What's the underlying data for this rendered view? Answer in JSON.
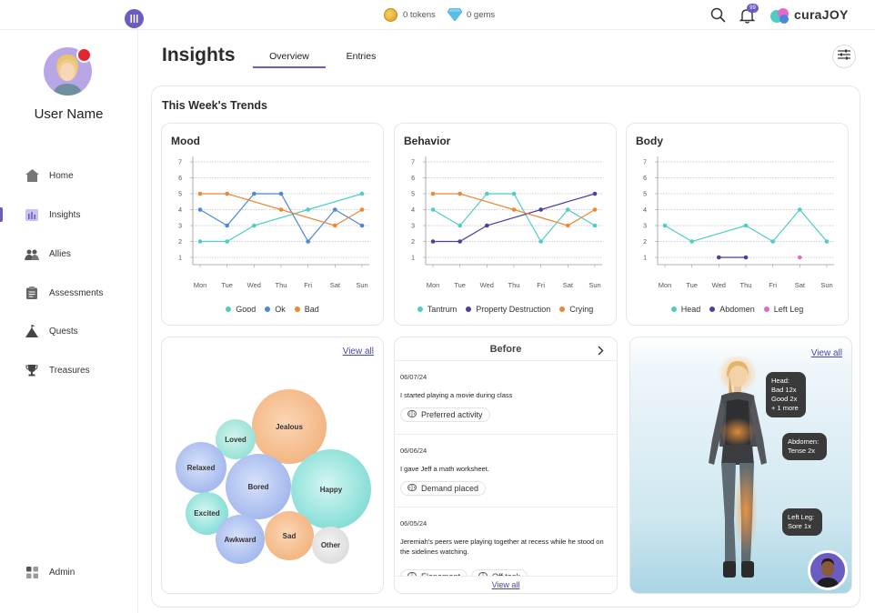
{
  "topbar": {
    "tokens_label": "0 tokens",
    "gems_label": "0 gems",
    "notification_count": "99",
    "brand": "curaJOY"
  },
  "sidebar": {
    "user_name": "User Name",
    "items": [
      {
        "label": "Home",
        "icon": "home-icon"
      },
      {
        "label": "Insights",
        "icon": "chart-bars-icon"
      },
      {
        "label": "Allies",
        "icon": "allies-icon"
      },
      {
        "label": "Assessments",
        "icon": "clipboard-icon"
      },
      {
        "label": "Quests",
        "icon": "mountain-flag-icon"
      },
      {
        "label": "Treasures",
        "icon": "trophy-icon"
      }
    ],
    "admin_label": "Admin"
  },
  "header": {
    "title": "Insights",
    "tabs": [
      {
        "label": "Overview",
        "active": true
      },
      {
        "label": "Entries",
        "active": false
      }
    ]
  },
  "trends": {
    "title": "This Week's Trends"
  },
  "charts": {
    "days": [
      "Mon",
      "Tue",
      "Wed",
      "Thu",
      "Fri",
      "Sat",
      "Sun"
    ],
    "yticks": [
      "1",
      "2",
      "3",
      "4",
      "5",
      "6",
      "7"
    ]
  },
  "chart_data": [
    {
      "type": "line",
      "title": "Mood",
      "categories": [
        "Mon",
        "Tue",
        "Wed",
        "Thu",
        "Fri",
        "Sat",
        "Sun"
      ],
      "ylim": [
        1,
        7
      ],
      "grid": true,
      "legend": "bottom",
      "series": [
        {
          "name": "Good",
          "color": "#4ecdc4",
          "values": [
            2,
            2,
            3,
            null,
            4,
            null,
            5
          ]
        },
        {
          "name": "Ok",
          "color": "#4a88d8",
          "values": [
            4,
            3,
            5,
            5,
            2,
            4,
            3
          ]
        },
        {
          "name": "Bad",
          "color": "#ef8632",
          "values": [
            5,
            5,
            null,
            4,
            null,
            3,
            4
          ]
        }
      ]
    },
    {
      "type": "line",
      "title": "Behavior",
      "categories": [
        "Mon",
        "Tue",
        "Wed",
        "Thu",
        "Fri",
        "Sat",
        "Sun"
      ],
      "ylim": [
        1,
        7
      ],
      "grid": true,
      "legend": "bottom",
      "series": [
        {
          "name": "Tantrum",
          "color": "#4ecdc4",
          "values": [
            4,
            3,
            5,
            5,
            2,
            4,
            3
          ]
        },
        {
          "name": "Property Destruction",
          "color": "#4b3fa0",
          "values": [
            2,
            2,
            3,
            null,
            4,
            null,
            5
          ]
        },
        {
          "name": "Crying",
          "color": "#ef8632",
          "values": [
            5,
            5,
            null,
            4,
            null,
            3,
            4
          ]
        }
      ]
    },
    {
      "type": "line",
      "title": "Body",
      "categories": [
        "Mon",
        "Tue",
        "Wed",
        "Thu",
        "Fri",
        "Sat",
        "Sun"
      ],
      "ylim": [
        1,
        7
      ],
      "grid": true,
      "legend": "bottom",
      "series": [
        {
          "name": "Head",
          "color": "#4ecdc4",
          "values": [
            3,
            2,
            null,
            3,
            2,
            4,
            2
          ]
        },
        {
          "name": "Abdomen",
          "color": "#4b3fa0",
          "values": [
            null,
            null,
            1,
            1,
            null,
            null,
            null
          ]
        },
        {
          "name": "Left Leg",
          "color": "#e868c8",
          "values": [
            null,
            null,
            null,
            null,
            null,
            1,
            null
          ]
        }
      ]
    }
  ],
  "emotions": {
    "view_all": "View all",
    "bubbles": [
      {
        "label": "Jealous",
        "color": "#f0a86e"
      },
      {
        "label": "Loved",
        "color": "#7fdacc"
      },
      {
        "label": "Relaxed",
        "color": "#8fa8e8"
      },
      {
        "label": "Bored",
        "color": "#8fa8e8"
      },
      {
        "label": "Happy",
        "color": "#66d4cc"
      },
      {
        "label": "Excited",
        "color": "#66d4cc"
      },
      {
        "label": "Awkward",
        "color": "#8fa8e8"
      },
      {
        "label": "Sad",
        "color": "#f0a86e"
      },
      {
        "label": "Other",
        "color": "#dcdcdc"
      }
    ]
  },
  "before": {
    "title": "Before",
    "entries": [
      {
        "date": "06/07/24",
        "text": "I started playing a movie during class",
        "chips": [
          "Preferred activity"
        ]
      },
      {
        "date": "06/06/24",
        "text": "I gave Jeff a math worksheet.",
        "chips": [
          "Demand placed"
        ]
      },
      {
        "date": "06/05/24",
        "text": "Jeremiah's peers were playing together at recess while he stood on the sidelines watching.",
        "chips": [
          "Elopement",
          "Off task"
        ]
      }
    ],
    "view_all": "View all"
  },
  "body_map": {
    "view_all": "View all",
    "tooltips": [
      {
        "lines": [
          "Head:",
          "Bad 12x",
          "Good 2x",
          "+ 1 more"
        ]
      },
      {
        "lines": [
          "Abdomen:",
          "Tense 2x"
        ]
      },
      {
        "lines": [
          "Left Leg:",
          "Sore 1x"
        ]
      }
    ]
  }
}
